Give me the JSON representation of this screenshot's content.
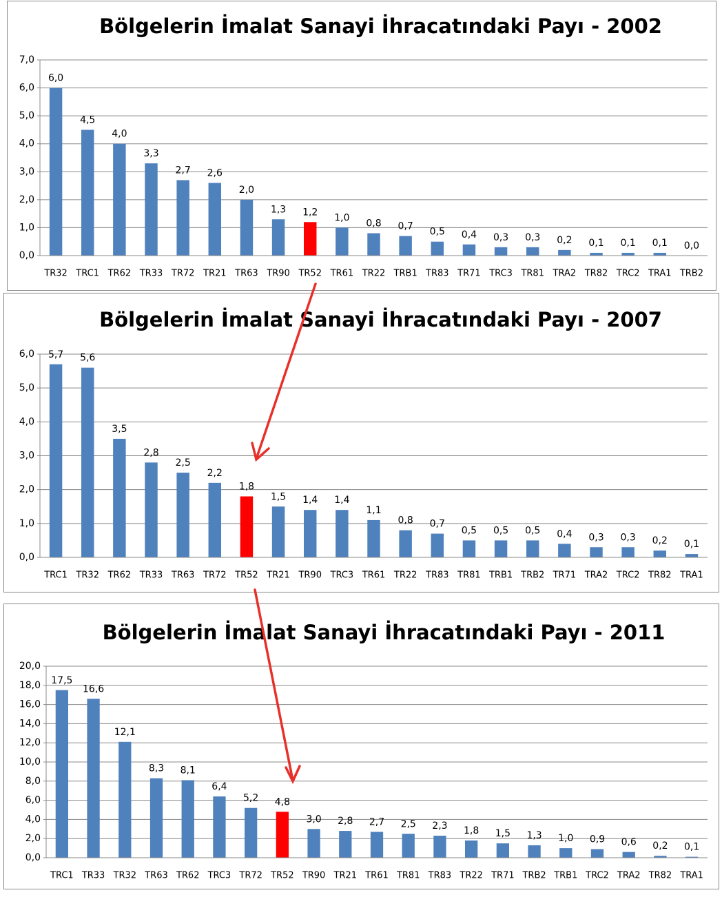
{
  "chart_data": [
    {
      "type": "bar",
      "title": "Bölgelerin İmalat Sanayi İhracatındaki Payı - 2002",
      "categories": [
        "TR32",
        "TRC1",
        "TR62",
        "TR33",
        "TR72",
        "TR21",
        "TR63",
        "TR90",
        "TR52",
        "TR61",
        "TR22",
        "TRB1",
        "TR83",
        "TR71",
        "TRC3",
        "TR81",
        "TRA2",
        "TR82",
        "TRC2",
        "TRA1",
        "TRB2"
      ],
      "values": [
        6.0,
        4.5,
        4.0,
        3.3,
        2.7,
        2.6,
        2.0,
        1.3,
        1.2,
        1.0,
        0.8,
        0.7,
        0.5,
        0.4,
        0.3,
        0.3,
        0.2,
        0.1,
        0.1,
        0.1,
        0.0
      ],
      "value_labels": [
        "6,0",
        "4,5",
        "4,0",
        "3,3",
        "2,7",
        "2,6",
        "2,0",
        "1,3",
        "1,2",
        "1,0",
        "0,8",
        "0,7",
        "0,5",
        "0,4",
        "0,3",
        "0,3",
        "0,2",
        "0,1",
        "0,1",
        "0,1",
        "0,0"
      ],
      "colors": [
        "#4f81bd",
        "#4f81bd",
        "#4f81bd",
        "#4f81bd",
        "#4f81bd",
        "#4f81bd",
        "#4f81bd",
        "#4f81bd",
        "#ff0000",
        "#4f81bd",
        "#4f81bd",
        "#4f81bd",
        "#4f81bd",
        "#4f81bd",
        "#4f81bd",
        "#4f81bd",
        "#4f81bd",
        "#4f81bd",
        "#4f81bd",
        "#4f81bd",
        "#4f81bd"
      ],
      "ylim": [
        0,
        7
      ],
      "yticks": [
        {
          "value": 0,
          "label": "0,0"
        },
        {
          "value": 1,
          "label": "1,0"
        },
        {
          "value": 2,
          "label": "2,0"
        },
        {
          "value": 3,
          "label": "3,0"
        },
        {
          "value": 4,
          "label": "4,0"
        },
        {
          "value": 5,
          "label": "5,0"
        },
        {
          "value": 6,
          "label": "6,0"
        },
        {
          "value": 7,
          "label": "7,0"
        }
      ],
      "grid": true
    },
    {
      "type": "bar",
      "title": "Bölgelerin İmalat Sanayi İhracatındaki Payı - 2007",
      "categories": [
        "TRC1",
        "TR32",
        "TR62",
        "TR33",
        "TR63",
        "TR72",
        "TR52",
        "TR21",
        "TR90",
        "TRC3",
        "TR61",
        "TR22",
        "TR83",
        "TR81",
        "TRB1",
        "TRB2",
        "TR71",
        "TRA2",
        "TRC2",
        "TR82",
        "TRA1"
      ],
      "values": [
        5.7,
        5.6,
        3.5,
        2.8,
        2.5,
        2.2,
        1.8,
        1.5,
        1.4,
        1.4,
        1.1,
        0.8,
        0.7,
        0.5,
        0.5,
        0.5,
        0.4,
        0.3,
        0.3,
        0.2,
        0.1
      ],
      "value_labels": [
        "5,7",
        "5,6",
        "3,5",
        "2,8",
        "2,5",
        "2,2",
        "1,8",
        "1,5",
        "1,4",
        "1,4",
        "1,1",
        "0,8",
        "0,7",
        "0,5",
        "0,5",
        "0,5",
        "0,4",
        "0,3",
        "0,3",
        "0,2",
        "0,1"
      ],
      "colors": [
        "#4f81bd",
        "#4f81bd",
        "#4f81bd",
        "#4f81bd",
        "#4f81bd",
        "#4f81bd",
        "#ff0000",
        "#4f81bd",
        "#4f81bd",
        "#4f81bd",
        "#4f81bd",
        "#4f81bd",
        "#4f81bd",
        "#4f81bd",
        "#4f81bd",
        "#4f81bd",
        "#4f81bd",
        "#4f81bd",
        "#4f81bd",
        "#4f81bd",
        "#4f81bd"
      ],
      "ylim": [
        0,
        6
      ],
      "yticks": [
        {
          "value": 0,
          "label": "0,0"
        },
        {
          "value": 1,
          "label": "1,0"
        },
        {
          "value": 2,
          "label": "2,0"
        },
        {
          "value": 3,
          "label": "3,0"
        },
        {
          "value": 4,
          "label": "4,0"
        },
        {
          "value": 5,
          "label": "5,0"
        },
        {
          "value": 6,
          "label": "6,0"
        }
      ],
      "grid": true
    },
    {
      "type": "bar",
      "title": "Bölgelerin İmalat Sanayi İhracatındaki Payı - 2011",
      "categories": [
        "TRC1",
        "TR33",
        "TR32",
        "TR63",
        "TR62",
        "TRC3",
        "TR72",
        "TR52",
        "TR90",
        "TR21",
        "TR61",
        "TR81",
        "TR83",
        "TR22",
        "TR71",
        "TRB2",
        "TRB1",
        "TRC2",
        "TRA2",
        "TR82",
        "TRA1"
      ],
      "values": [
        17.5,
        16.6,
        12.1,
        8.3,
        8.1,
        6.4,
        5.2,
        4.8,
        3.0,
        2.8,
        2.7,
        2.5,
        2.3,
        1.8,
        1.5,
        1.3,
        1.0,
        0.9,
        0.6,
        0.2,
        0.1
      ],
      "value_labels": [
        "17,5",
        "16,6",
        "12,1",
        "8,3",
        "8,1",
        "6,4",
        "5,2",
        "4,8",
        "3,0",
        "2,8",
        "2,7",
        "2,5",
        "2,3",
        "1,8",
        "1,5",
        "1,3",
        "1,0",
        "0,9",
        "0,6",
        "0,2",
        "0,1"
      ],
      "colors": [
        "#4f81bd",
        "#4f81bd",
        "#4f81bd",
        "#4f81bd",
        "#4f81bd",
        "#4f81bd",
        "#4f81bd",
        "#ff0000",
        "#4f81bd",
        "#4f81bd",
        "#4f81bd",
        "#4f81bd",
        "#4f81bd",
        "#4f81bd",
        "#4f81bd",
        "#4f81bd",
        "#4f81bd",
        "#4f81bd",
        "#4f81bd",
        "#4f81bd",
        "#4f81bd"
      ],
      "ylim": [
        0,
        20
      ],
      "yticks": [
        {
          "value": 0,
          "label": "0,0"
        },
        {
          "value": 2,
          "label": "2,0"
        },
        {
          "value": 4,
          "label": "4,0"
        },
        {
          "value": 6,
          "label": "6,0"
        },
        {
          "value": 8,
          "label": "8,0"
        },
        {
          "value": 10,
          "label": "10,0"
        },
        {
          "value": 12,
          "label": "12,0"
        },
        {
          "value": 14,
          "label": "14,0"
        },
        {
          "value": 16,
          "label": "16,0"
        },
        {
          "value": 18,
          "label": "18,0"
        },
        {
          "value": 20,
          "label": "20,0"
        }
      ],
      "grid": true
    }
  ]
}
